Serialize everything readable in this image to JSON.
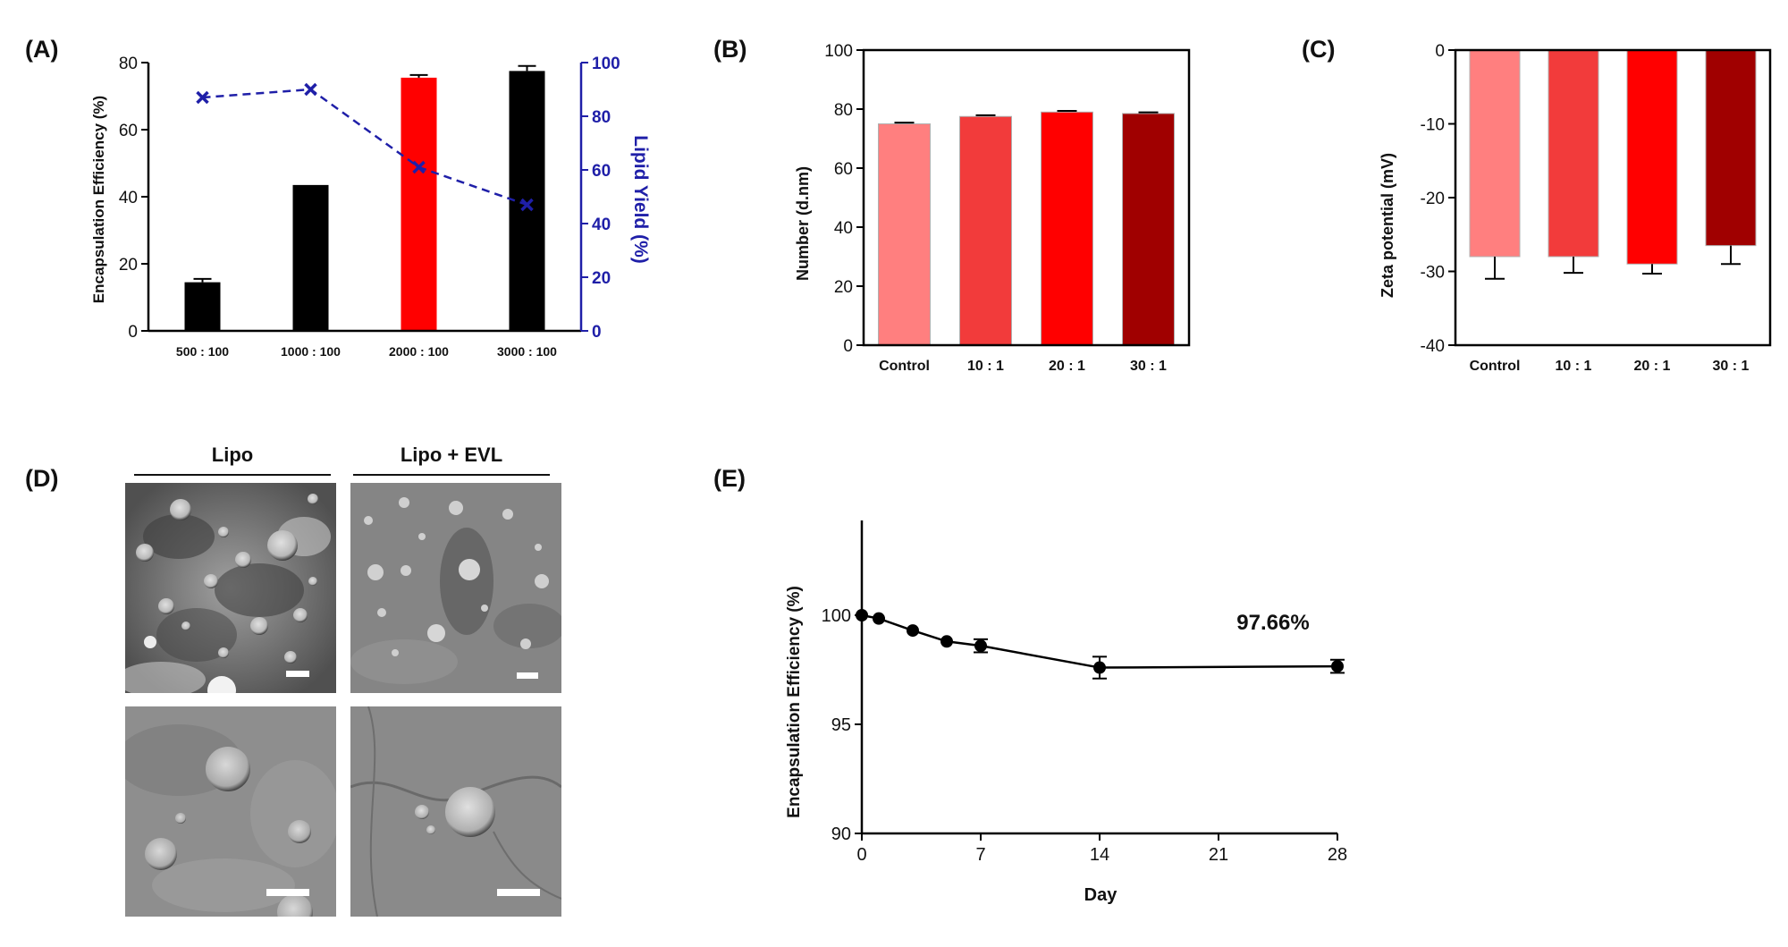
{
  "panels": {
    "a": "(A)",
    "b": "(B)",
    "c": "(C)",
    "d": "(D)",
    "e": "(E)"
  },
  "colors": {
    "black_bar": "#000000",
    "red_bar": "#ff0000",
    "yield_line": "#1f1fa8",
    "control": "#ff7f7f",
    "r10": "#f23b3b",
    "r20": "#ff0000",
    "r30": "#a00000"
  },
  "micrograph": {
    "col1": "Lipo",
    "col2": "Lipo + EVL"
  },
  "chart_data": [
    {
      "id": "A",
      "type": "bar",
      "categories": [
        "500 : 100",
        "1000 : 100",
        "2000 : 100",
        "3000 : 100"
      ],
      "series": [
        {
          "values": [
            14.5,
            43.5,
            75.5,
            77.5
          ],
          "errors": [
            1,
            0,
            0.8,
            1.5
          ],
          "axis": "left"
        },
        {
          "type": "line",
          "values": [
            87,
            90,
            61,
            47
          ],
          "axis": "right",
          "style": "dashed",
          "marker": "x"
        }
      ],
      "ylabel": "Encapsulation Efficiency (%)",
      "ylabel2": "Lipid Yield (%)",
      "ylim": [
        0,
        80
      ],
      "yticks": [
        0,
        20,
        40,
        60,
        80
      ],
      "ylim2": [
        0,
        100
      ],
      "yticks2": [
        0,
        20,
        40,
        60,
        80,
        100
      ]
    },
    {
      "id": "B",
      "type": "bar",
      "categories": [
        "Control",
        "10 : 1",
        "20 : 1",
        "30 : 1"
      ],
      "values": [
        75,
        77.5,
        79,
        78.5
      ],
      "errors": [
        0.4,
        0.4,
        0.4,
        0.4
      ],
      "ylabel": "Number (d.nm)",
      "ylim": [
        0,
        100
      ],
      "yticks": [
        0,
        20,
        40,
        60,
        80,
        100
      ]
    },
    {
      "id": "C",
      "type": "bar",
      "categories": [
        "Control",
        "10 : 1",
        "20 : 1",
        "30 : 1"
      ],
      "values": [
        -28,
        -28,
        -29,
        -26.5
      ],
      "errors": [
        3,
        2.2,
        1.3,
        2.5
      ],
      "ylabel": "Zeta potential (mV)",
      "ylim": [
        -40,
        0
      ],
      "yticks": [
        0,
        -10,
        -20,
        -30,
        -40
      ]
    },
    {
      "id": "E",
      "type": "line",
      "x": [
        0,
        1,
        3,
        5,
        7,
        14,
        28
      ],
      "y": [
        100,
        99.85,
        99.3,
        98.8,
        98.6,
        97.6,
        97.66
      ],
      "errors": [
        0.05,
        0.1,
        0.1,
        0.1,
        0.3,
        0.5,
        0.3
      ],
      "xlabel": "Day",
      "ylabel": "Encapsulation Efficiency (%)",
      "xlim": [
        0,
        28
      ],
      "xticks": [
        0,
        7,
        14,
        21,
        28
      ],
      "ylim": [
        90,
        100
      ],
      "yticks": [
        90,
        95,
        100
      ],
      "annotation": "97.66%"
    }
  ]
}
